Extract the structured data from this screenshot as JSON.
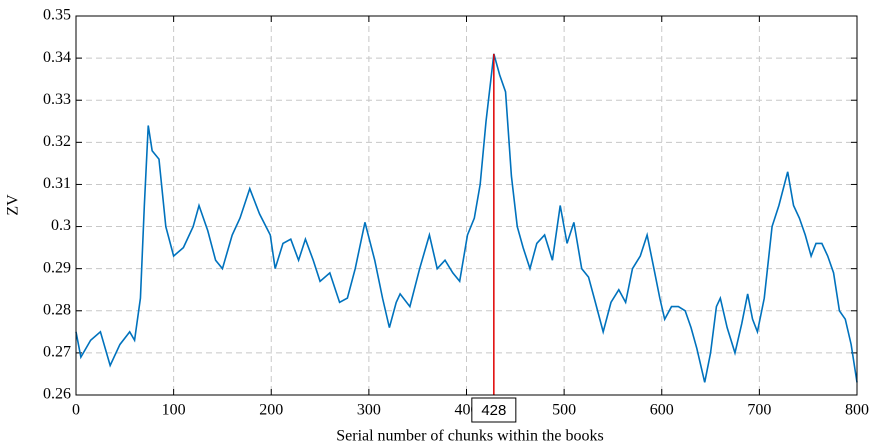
{
  "chart_data": {
    "type": "line",
    "xlabel": "Serial number of chunks within the books",
    "ylabel": "ZV",
    "x": [
      0,
      5,
      15,
      25,
      35,
      45,
      55,
      60,
      66,
      70,
      74,
      78,
      85,
      92,
      100,
      110,
      120,
      126,
      135,
      143,
      150,
      160,
      168,
      178,
      188,
      199,
      204,
      212,
      220,
      228,
      235,
      243,
      250,
      260,
      270,
      278,
      286,
      296,
      306,
      314,
      321,
      328,
      332,
      342,
      352,
      362,
      370,
      378,
      386,
      393,
      401,
      408,
      414,
      420,
      428,
      434,
      440,
      446,
      452,
      458,
      465,
      472,
      480,
      488,
      496,
      503,
      510,
      518,
      525,
      532,
      540,
      548,
      556,
      563,
      570,
      578,
      585,
      592,
      598,
      603,
      610,
      617,
      624,
      630,
      636,
      644,
      650,
      656,
      660,
      667,
      675,
      682,
      688,
      693,
      698,
      705,
      713,
      720,
      729,
      735,
      741,
      747,
      753,
      758,
      764,
      770,
      776,
      782,
      788,
      794,
      800
    ],
    "series": [
      {
        "name": "ZV",
        "color": "#0072bd",
        "values": [
          0.275,
          0.269,
          0.273,
          0.275,
          0.267,
          0.272,
          0.275,
          0.273,
          0.283,
          0.305,
          0.324,
          0.318,
          0.316,
          0.3,
          0.293,
          0.295,
          0.3,
          0.305,
          0.299,
          0.292,
          0.29,
          0.298,
          0.302,
          0.309,
          0.303,
          0.298,
          0.29,
          0.296,
          0.297,
          0.292,
          0.297,
          0.292,
          0.287,
          0.289,
          0.282,
          0.283,
          0.29,
          0.301,
          0.292,
          0.283,
          0.276,
          0.282,
          0.284,
          0.281,
          0.29,
          0.298,
          0.29,
          0.292,
          0.289,
          0.287,
          0.298,
          0.302,
          0.31,
          0.325,
          0.341,
          0.336,
          0.332,
          0.312,
          0.3,
          0.295,
          0.29,
          0.296,
          0.298,
          0.292,
          0.305,
          0.296,
          0.301,
          0.29,
          0.288,
          0.282,
          0.275,
          0.282,
          0.285,
          0.282,
          0.29,
          0.293,
          0.298,
          0.29,
          0.283,
          0.278,
          0.281,
          0.281,
          0.28,
          0.276,
          0.271,
          0.263,
          0.27,
          0.281,
          0.283,
          0.276,
          0.27,
          0.277,
          0.284,
          0.278,
          0.275,
          0.283,
          0.3,
          0.305,
          0.313,
          0.305,
          0.302,
          0.298,
          0.293,
          0.296,
          0.296,
          0.293,
          0.289,
          0.28,
          0.278,
          0.272,
          0.263
        ]
      }
    ],
    "xlim": [
      0,
      800
    ],
    "xticks": [
      0,
      100,
      200,
      300,
      400,
      500,
      600,
      700,
      800
    ],
    "ylim": [
      0.26,
      0.35
    ],
    "yticks": [
      0.26,
      0.27,
      0.28,
      0.29,
      0.3,
      0.31,
      0.32,
      0.33,
      0.34,
      0.35
    ],
    "grid": true,
    "annotation": {
      "x": 428,
      "y": 0.341,
      "color": "#e00000"
    }
  }
}
